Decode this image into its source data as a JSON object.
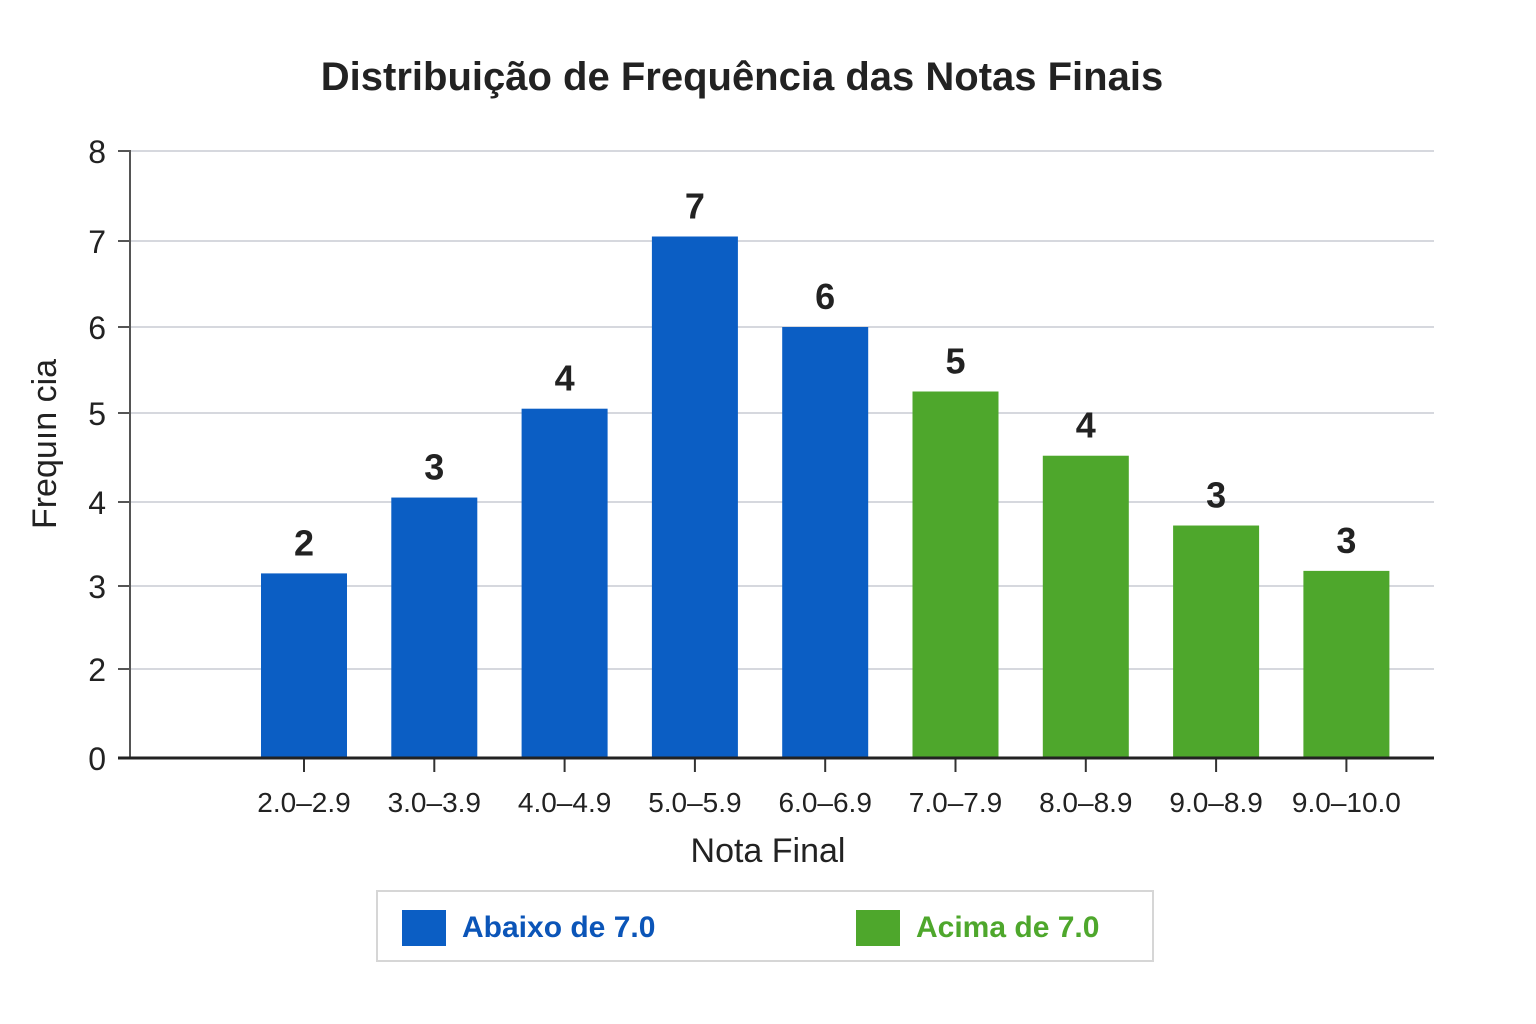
{
  "chart_data": {
    "type": "bar",
    "title": "Distribuição de Frequência das Notas Finais",
    "xlabel": "Nota Final",
    "ylabel": "Frequın cia",
    "y_ticks": [
      "0",
      "2",
      "3",
      "4",
      "5",
      "6",
      "7",
      "8"
    ],
    "categories": [
      "2.0–2.9",
      "3.0–3.9",
      "4.0–4.9",
      "5.0–5.9",
      "6.0–6.9",
      "7.0–7.9",
      "8.0–8.9",
      "9.0–8.9",
      "9.0–10.0"
    ],
    "bar_tick_level": [
      3.15,
      4.05,
      5.05,
      7.05,
      6.0,
      5.25,
      4.52,
      3.72,
      3.18
    ],
    "values": [
      2,
      3,
      4,
      7,
      6,
      5,
      4,
      3,
      3
    ],
    "groups": [
      "Abaixo de 7.0",
      "Abaixo de 7.0",
      "Abaixo de 7.0",
      "Abaixo de 7.0",
      "Abaixo de 7.0",
      "Acima de 7.0",
      "Acima de 7.0",
      "Acima de 7.0",
      "Acima de 7.0"
    ],
    "grid": true,
    "legend_position": "bottom"
  },
  "legend": {
    "below_label": "Abaixo de 7.0",
    "above_label": "Acima de 7.0",
    "below_color": "#0b5ec4",
    "above_color": "#4ea72c",
    "below_text_color": "#0b55b8",
    "above_text_color": "#4ea72c"
  }
}
